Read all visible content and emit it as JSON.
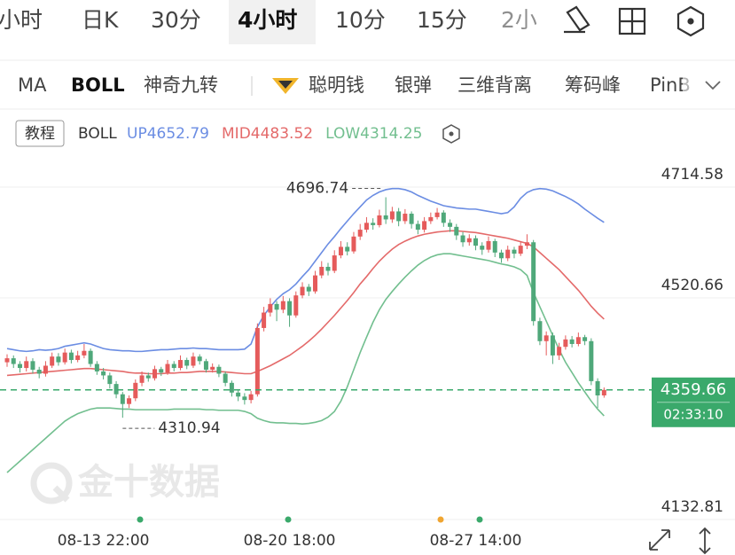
{
  "tabs": [
    "小时",
    "日K",
    "30分",
    "4小时",
    "10分",
    "15分",
    "2小"
  ],
  "indicators": [
    "MA",
    "BOLL",
    "神奇九转",
    "聪明钱",
    "银弹",
    "三维背离",
    "筹码峰",
    "PinB"
  ],
  "tutorial_button": "教程",
  "watermark": "金十数据",
  "chart_data": {
    "type": "candlestick",
    "indicator": "BOLL",
    "categories": [
      null,
      null,
      null,
      null,
      null,
      null,
      null,
      null,
      null,
      null,
      null,
      null,
      null,
      null,
      null,
      "08-13 22:00",
      null,
      null,
      null,
      null,
      null,
      null,
      null,
      null,
      null,
      null,
      null,
      null,
      null,
      null,
      null,
      null,
      null,
      null,
      null,
      null,
      null,
      null,
      null,
      null,
      null,
      null,
      null,
      null,
      "08-20 18:00",
      null,
      null,
      null,
      null,
      null,
      null,
      null,
      null,
      null,
      null,
      null,
      null,
      null,
      null,
      null,
      null,
      null,
      null,
      null,
      null,
      null,
      null,
      null,
      null,
      null,
      null,
      null,
      null,
      "08-27 14:00",
      null,
      null,
      null,
      null,
      null,
      null,
      null,
      null,
      null,
      null,
      null,
      null,
      null,
      null,
      null,
      null,
      null,
      null,
      null,
      null
    ],
    "open": [
      4408,
      4415,
      4405,
      4398,
      4410,
      4395,
      4388,
      4402,
      4418,
      4408,
      4425,
      4412,
      4420,
      4428,
      4405,
      4392,
      4385,
      4370,
      4352,
      4335,
      4345,
      4372,
      4385,
      4380,
      4396,
      4390,
      4405,
      4398,
      4412,
      4402,
      4418,
      4410,
      4395,
      4400,
      4388,
      4372,
      4355,
      4348,
      4342,
      4352,
      4468,
      4495,
      4510,
      4500,
      4515,
      4490,
      4525,
      4540,
      4532,
      4560,
      4575,
      4568,
      4595,
      4610,
      4602,
      4628,
      4640,
      4652,
      4648,
      4665,
      4658,
      4672,
      4655,
      4668,
      4650,
      4640,
      4655,
      4662,
      4670,
      4652,
      4645,
      4630,
      4618,
      4625,
      4612,
      4605,
      4620,
      4600,
      4590,
      4605,
      4598,
      4612,
      4618,
      4480,
      4445,
      4455,
      4420,
      4435,
      4448,
      4440,
      4452,
      4445,
      4375,
      4350
    ],
    "high": [
      4422,
      4420,
      4410,
      4418,
      4415,
      4400,
      4410,
      4425,
      4424,
      4432,
      4430,
      4428,
      4440,
      4432,
      4410,
      4398,
      4390,
      4375,
      4356,
      4350,
      4378,
      4392,
      4390,
      4402,
      4400,
      4412,
      4410,
      4420,
      4416,
      4425,
      4422,
      4414,
      4406,
      4404,
      4392,
      4376,
      4360,
      4354,
      4358,
      4476,
      4505,
      4520,
      4515,
      4524,
      4520,
      4532,
      4548,
      4545,
      4568,
      4585,
      4582,
      4604,
      4620,
      4618,
      4636,
      4650,
      4662,
      4660,
      4675,
      4696.74,
      4680,
      4678,
      4676,
      4672,
      4656,
      4662,
      4670,
      4678,
      4674,
      4658,
      4650,
      4636,
      4632,
      4630,
      4618,
      4628,
      4624,
      4605,
      4612,
      4610,
      4620,
      4632,
      4622,
      4486,
      4462,
      4460,
      4442,
      4455,
      4454,
      4460,
      4456,
      4450,
      4380,
      4364
    ],
    "low": [
      4400,
      4398,
      4390,
      4392,
      4388,
      4380,
      4383,
      4398,
      4402,
      4404,
      4406,
      4408,
      4415,
      4400,
      4386,
      4378,
      4362,
      4345,
      4310.94,
      4328,
      4340,
      4366,
      4374,
      4376,
      4384,
      4386,
      4392,
      4394,
      4396,
      4398,
      4404,
      4390,
      4390,
      4382,
      4366,
      4348,
      4340,
      4334,
      4336,
      4348,
      4462,
      4488,
      4480,
      4494,
      4470,
      4486,
      4520,
      4524,
      4528,
      4555,
      4560,
      4564,
      4590,
      4595,
      4598,
      4622,
      4635,
      4640,
      4644,
      4650,
      4652,
      4646,
      4650,
      4642,
      4632,
      4635,
      4650,
      4658,
      4645,
      4636,
      4622,
      4610,
      4612,
      4604,
      4596,
      4600,
      4592,
      4582,
      4585,
      4590,
      4594,
      4606,
      4472,
      4438,
      4420,
      4405,
      4412,
      4430,
      4434,
      4436,
      4438,
      4368,
      4328,
      4346
    ],
    "close": [
      4415,
      4405,
      4398,
      4410,
      4395,
      4388,
      4402,
      4418,
      4408,
      4425,
      4412,
      4420,
      4428,
      4405,
      4392,
      4385,
      4370,
      4352,
      4335,
      4345,
      4372,
      4385,
      4380,
      4396,
      4390,
      4405,
      4398,
      4412,
      4402,
      4418,
      4410,
      4395,
      4400,
      4388,
      4372,
      4355,
      4348,
      4342,
      4352,
      4468,
      4495,
      4510,
      4500,
      4515,
      4490,
      4525,
      4540,
      4532,
      4560,
      4575,
      4568,
      4595,
      4610,
      4602,
      4628,
      4640,
      4652,
      4648,
      4665,
      4658,
      4672,
      4655,
      4668,
      4650,
      4640,
      4655,
      4662,
      4670,
      4652,
      4645,
      4630,
      4618,
      4625,
      4612,
      4605,
      4620,
      4600,
      4590,
      4605,
      4598,
      4612,
      4618,
      4480,
      4445,
      4455,
      4420,
      4435,
      4448,
      4440,
      4452,
      4445,
      4375,
      4350,
      4359.66
    ],
    "up_color": "#e55b5b",
    "down_color": "#4fa87a",
    "series": [
      {
        "name": "UP",
        "color": "#6b8de3",
        "values": [
          4432,
          4430,
          4428,
          4427,
          4428,
          4430,
          4429,
          4430,
          4432,
          4436,
          4438,
          4440,
          4442,
          4440,
          4436,
          4432,
          4430,
          4429,
          4428,
          4428,
          4427,
          4427,
          4428,
          4429,
          4430,
          4430,
          4431,
          4432,
          4432,
          4433,
          4432,
          4432,
          4431,
          4430,
          4430,
          4430,
          4430,
          4431,
          4440,
          4470,
          4490,
          4505,
          4518,
          4528,
          4535,
          4545,
          4558,
          4570,
          4585,
          4600,
          4615,
          4628,
          4642,
          4655,
          4668,
          4680,
          4692,
          4700,
          4706,
          4710,
          4712,
          4712,
          4710,
          4706,
          4700,
          4695,
          4690,
          4686,
          4682,
          4680,
          4678,
          4677,
          4676,
          4676,
          4674,
          4672,
          4670,
          4668,
          4670,
          4680,
          4695,
          4705,
          4710,
          4712,
          4711,
          4708,
          4703,
          4698,
          4692,
          4685,
          4676,
          4668,
          4660,
          4652.79
        ]
      },
      {
        "name": "MID",
        "color": "#e46a6a",
        "values": [
          4385,
          4386,
          4387,
          4388,
          4389,
          4390,
          4391,
          4392,
          4393,
          4394,
          4395,
          4396,
          4397,
          4397,
          4396,
          4395,
          4394,
          4393,
          4392,
          4390,
          4389,
          4389,
          4388,
          4388,
          4388,
          4389,
          4389,
          4390,
          4390,
          4391,
          4392,
          4392,
          4392,
          4392,
          4391,
          4390,
          4389,
          4388,
          4388,
          4392,
          4397,
          4402,
          4408,
          4414,
          4420,
          4428,
          4436,
          4445,
          4455,
          4466,
          4478,
          4490,
          4503,
          4516,
          4530,
          4545,
          4558,
          4572,
          4585,
          4596,
          4606,
          4614,
          4620,
          4625,
          4629,
          4632,
          4634,
          4636,
          4637,
          4638,
          4638,
          4637,
          4636,
          4635,
          4633,
          4631,
          4629,
          4627,
          4625,
          4622,
          4619,
          4616,
          4610,
          4600,
          4590,
          4580,
          4570,
          4558,
          4546,
          4534,
          4520,
          4506,
          4494,
          4483.52
        ]
      },
      {
        "name": "LOW",
        "color": "#72bf8f",
        "values": [
          4215,
          4225,
          4235,
          4245,
          4255,
          4265,
          4275,
          4285,
          4295,
          4305,
          4312,
          4318,
          4322,
          4326,
          4328,
          4328,
          4328,
          4327,
          4326,
          4326,
          4325,
          4325,
          4325,
          4325,
          4325,
          4325,
          4326,
          4326,
          4326,
          4326,
          4326,
          4325,
          4325,
          4324,
          4324,
          4324,
          4324,
          4322,
          4318,
          4310,
          4306,
          4303,
          4302,
          4302,
          4301,
          4301,
          4300,
          4301,
          4303,
          4306,
          4312,
          4322,
          4340,
          4365,
          4395,
          4425,
          4452,
          4478,
          4500,
          4518,
          4532,
          4545,
          4557,
          4568,
          4578,
          4586,
          4592,
          4596,
          4598,
          4598,
          4596,
          4594,
          4592,
          4590,
          4588,
          4586,
          4583,
          4580,
          4578,
          4575,
          4570,
          4560,
          4530,
          4505,
          4480,
          4455,
          4430,
          4408,
          4390,
          4372,
          4356,
          4340,
          4326,
          4314.25
        ]
      }
    ],
    "ylim": [
      4132.81,
      4778.19
    ],
    "yticks": [
      4132.81,
      4520.66,
      4714.58
    ],
    "grid": true,
    "current_price_color": "#3aa96b",
    "countdown": "02:33:10"
  }
}
